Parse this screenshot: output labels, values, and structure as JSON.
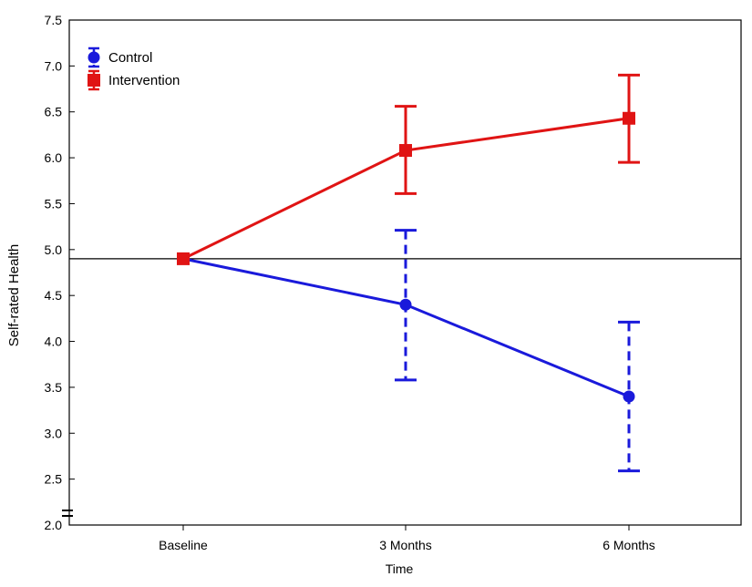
{
  "chart_data": {
    "type": "line",
    "title": "",
    "xlabel": "Time",
    "ylabel": "Self-rated Health",
    "categories": [
      "Baseline",
      "3 Months",
      "6 Months"
    ],
    "ylim": [
      2.0,
      7.5
    ],
    "yticks": [
      "2.0",
      "2.5",
      "3.0",
      "3.5",
      "4.0",
      "4.5",
      "5.0",
      "5.5",
      "6.0",
      "6.5",
      "7.0",
      "7.5"
    ],
    "reference_line": 4.9,
    "grid": false,
    "legend_position": "top-left",
    "series": [
      {
        "name": "Control",
        "color": "#1a1adb",
        "marker": "circle",
        "errorbar_style": "dashed",
        "values": [
          4.9,
          4.4,
          3.4
        ],
        "lower": [
          null,
          3.58,
          2.59
        ],
        "upper": [
          null,
          5.21,
          4.21
        ]
      },
      {
        "name": "Intervention",
        "color": "#e01414",
        "marker": "square",
        "errorbar_style": "solid",
        "values": [
          4.9,
          6.08,
          6.43
        ],
        "lower": [
          null,
          5.61,
          5.95
        ],
        "upper": [
          null,
          6.56,
          6.9
        ]
      }
    ]
  }
}
